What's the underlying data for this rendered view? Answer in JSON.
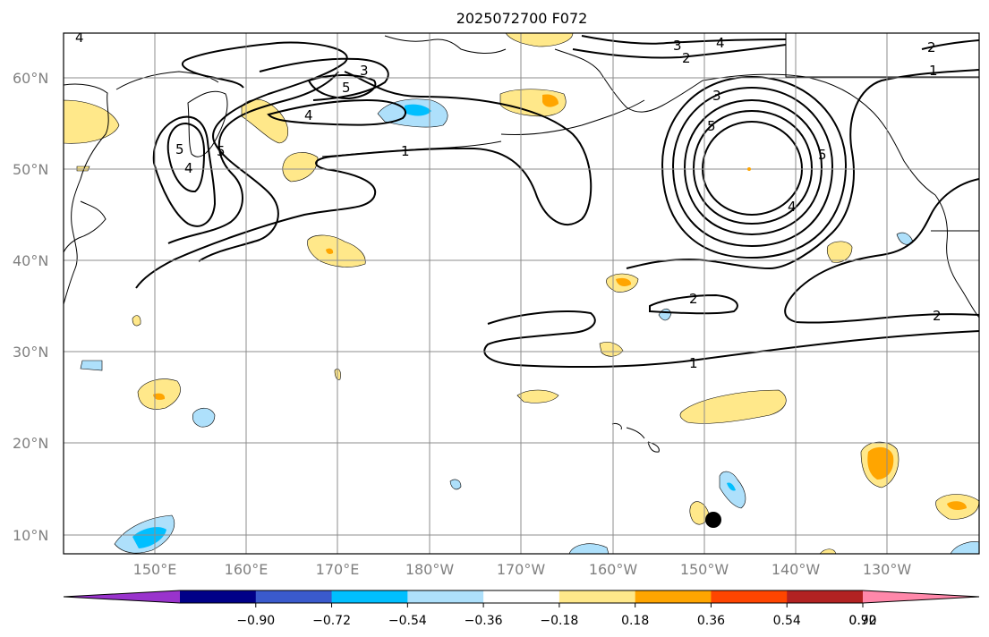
{
  "title": "2025072700 F072",
  "lat_labels": [
    "60°N",
    "50°N",
    "40°N",
    "30°N",
    "20°N",
    "10°N"
  ],
  "lon_labels": [
    "150°E",
    "160°E",
    "170°E",
    "180°W",
    "170°W",
    "160°W",
    "150°W",
    "140°W",
    "130°W"
  ],
  "colorbar": {
    "colors": [
      "#9933cc",
      "#000088",
      "#3a5acc",
      "#00bfff",
      "#aee0fb",
      "#ffffff",
      "#ffe88a",
      "#ffa500",
      "#ff4500",
      "#b22222",
      "#ff88aa"
    ],
    "tick_labels": [
      "−0.90",
      "−0.72",
      "−0.54",
      "−0.36",
      "−0.18",
      "0.18",
      "0.36",
      "0.54",
      "0.72",
      "0.90"
    ]
  },
  "contour_labels": [
    {
      "id": "c1a",
      "text": "1"
    },
    {
      "id": "c1b",
      "text": "1"
    },
    {
      "id": "c1c",
      "text": "1"
    },
    {
      "id": "c2a",
      "text": "2"
    },
    {
      "id": "c2b",
      "text": "2"
    },
    {
      "id": "c2c",
      "text": "2"
    },
    {
      "id": "c2d",
      "text": "2"
    },
    {
      "id": "c3a",
      "text": "3"
    },
    {
      "id": "c3b",
      "text": "3"
    },
    {
      "id": "c3c",
      "text": "3"
    },
    {
      "id": "c4a",
      "text": "4"
    },
    {
      "id": "c4b",
      "text": "4"
    },
    {
      "id": "c4c",
      "text": "4"
    },
    {
      "id": "c4d",
      "text": "4"
    },
    {
      "id": "c4e",
      "text": "4"
    },
    {
      "id": "c5a",
      "text": "5"
    },
    {
      "id": "c5b",
      "text": "5"
    },
    {
      "id": "c5c",
      "text": "5"
    },
    {
      "id": "c5d",
      "text": "5"
    },
    {
      "id": "c5e",
      "text": "5"
    }
  ]
}
